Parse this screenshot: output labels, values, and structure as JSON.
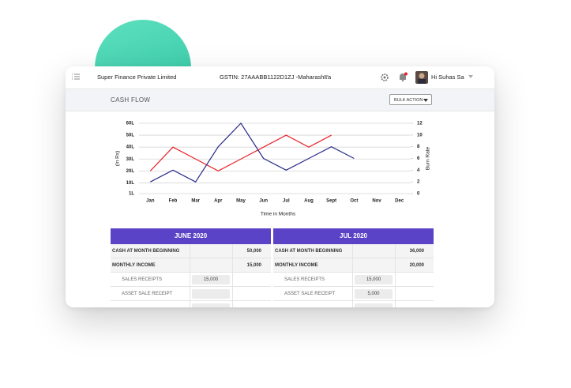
{
  "header": {
    "company": "Super Finance Private Limited",
    "gstin": "GSTIN: 27AAABB1122D1ZJ -Maharashtra",
    "user": "Hi Suhas Sa"
  },
  "section": {
    "title": "CASH FLOW",
    "button": "BULK ACTION"
  },
  "chart_data": {
    "type": "line",
    "categories": [
      "Jan",
      "Feb",
      "Mar",
      "Apr",
      "May",
      "Jun",
      "Jul",
      "Aug",
      "Sept",
      "Oct",
      "Nov",
      "Dec"
    ],
    "series": [
      {
        "color": "#e8232b",
        "values": [
          20,
          40,
          30,
          20,
          30,
          40,
          50,
          40,
          50,
          null,
          null,
          null
        ]
      },
      {
        "color": "#2b2d8c",
        "axis": "y2",
        "values": [
          2,
          4,
          2,
          8,
          12,
          6,
          4,
          6,
          8,
          6,
          null,
          null
        ]
      }
    ],
    "ylabel": "(In Rs)",
    "y2label": "Burn Rate",
    "xlabel": "Time in Months",
    "ylim": [
      1,
      60
    ],
    "yticks": [
      {
        "value": 1,
        "label": "1L"
      },
      {
        "value": 10,
        "label": "10L"
      },
      {
        "value": 20,
        "label": "20L"
      },
      {
        "value": 30,
        "label": "30L"
      },
      {
        "value": 40,
        "label": "40L"
      },
      {
        "value": 50,
        "label": "50L"
      },
      {
        "value": 60,
        "label": "60L"
      }
    ],
    "y2lim": [
      0,
      12
    ],
    "y2ticks": [
      0,
      2,
      4,
      6,
      8,
      10,
      12
    ],
    "grid": true
  },
  "table": {
    "columns": [
      {
        "title": "JUNE 2020",
        "rows": [
          {
            "label": "CASH AT MONTH BEGINNING",
            "total": "50,000"
          },
          {
            "label": "MONTHLY INCOME",
            "total": "15,000"
          },
          {
            "label": "SALES RECEIPTS",
            "input": "15,000"
          },
          {
            "label": "ASSET SALE RECEIPT"
          }
        ]
      },
      {
        "title": "JUL 2020",
        "rows": [
          {
            "label": "CASH AT MONTH BEGINNING",
            "total": "36,000"
          },
          {
            "label": "MONTHLY INCOME",
            "total": "20,000"
          },
          {
            "label": "SALES RECEIPTS",
            "input": "15,000"
          },
          {
            "label": "ASSET SALE RECEIPT",
            "input": "5,000"
          }
        ]
      }
    ]
  }
}
